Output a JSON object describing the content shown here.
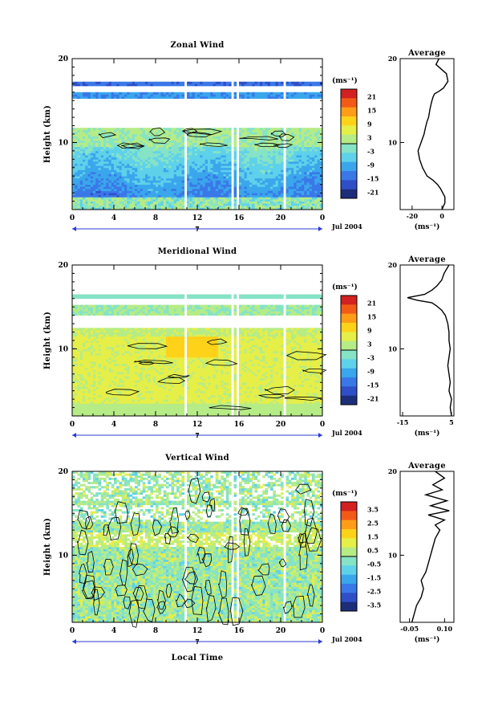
{
  "figure_label": "Jul 2004",
  "x_axis_label": "Local Time",
  "date_marker": "7",
  "average_title": "Average",
  "unit_label": "(ms⁻¹)",
  "chart_data": [
    {
      "type": "heatmap",
      "title": "Zonal Wind",
      "ylabel": "Height (km)",
      "xlabel": "",
      "x_ticks": [
        "0",
        "4",
        "8",
        "12",
        "16",
        "20",
        "0"
      ],
      "y_ticks": [
        "10",
        "20"
      ],
      "xlim": [
        0,
        24
      ],
      "ylim": [
        2,
        20
      ],
      "colorbar": {
        "label": "(ms⁻¹)",
        "ticks": [
          "21",
          "15",
          "9",
          "3",
          "-3",
          "-9",
          "-15",
          "-21"
        ],
        "range": [
          -24,
          24
        ]
      },
      "data_gaps_hours": [
        10.8,
        15.3,
        15.8,
        20.2
      ],
      "colormap": [
        "#1c2e7a",
        "#2f4fc8",
        "#3a78e8",
        "#3aa6ec",
        "#5fd1ea",
        "#86e3c6",
        "#b6ec86",
        "#e6ee48",
        "#ffd21a",
        "#ff9d18",
        "#f35a18",
        "#d32020"
      ],
      "average_profile": {
        "title": "Average",
        "xlabel": "(ms⁻¹)",
        "x_ticks": [
          "-20",
          "0"
        ],
        "y_ticks": [
          "10",
          "20"
        ],
        "xlim": [
          -28,
          8
        ],
        "ylim": [
          2,
          20
        ],
        "x": [
          0,
          2,
          2,
          -1,
          -3,
          -6,
          -10,
          -13,
          -15,
          -16,
          -14,
          -12,
          -11,
          -10,
          -9,
          -8,
          -7,
          -6,
          -5,
          -2,
          1,
          4,
          3,
          -4,
          -2
        ],
        "y": [
          2,
          2.8,
          3.5,
          4.5,
          5,
          5.5,
          6,
          7,
          8,
          9,
          10,
          11,
          11.8,
          12.5,
          13,
          14,
          14.8,
          15.4,
          15.8,
          16.1,
          16.5,
          17.3,
          18.2,
          19.3,
          20
        ]
      }
    },
    {
      "type": "heatmap",
      "title": "Meridional Wind",
      "ylabel": "Height (km)",
      "xlabel": "",
      "x_ticks": [
        "0",
        "4",
        "8",
        "12",
        "16",
        "20",
        "0"
      ],
      "y_ticks": [
        "10",
        "20"
      ],
      "xlim": [
        0,
        24
      ],
      "ylim": [
        2,
        20
      ],
      "colorbar": {
        "label": "(ms⁻¹)",
        "ticks": [
          "21",
          "15",
          "9",
          "3",
          "-3",
          "-9",
          "-15",
          "-21"
        ],
        "range": [
          -24,
          24
        ]
      },
      "data_gaps_hours": [
        10.8,
        15.3,
        15.8,
        20.2
      ],
      "colormap": [
        "#1c2e7a",
        "#2f4fc8",
        "#3a78e8",
        "#3aa6ec",
        "#5fd1ea",
        "#86e3c6",
        "#b6ec86",
        "#e6ee48",
        "#ffd21a",
        "#ff9d18",
        "#f35a18",
        "#d32020"
      ],
      "average_profile": {
        "title": "Average",
        "xlabel": "(ms⁻¹)",
        "x_ticks": [
          "-15",
          "5"
        ],
        "y_ticks": [
          "10",
          "20"
        ],
        "xlim": [
          -16,
          6
        ],
        "ylim": [
          2,
          20
        ],
        "x": [
          5,
          4.5,
          5,
          4,
          4.5,
          4,
          3.5,
          4,
          4.5,
          4,
          4,
          3.5,
          3,
          2.5,
          1,
          -1,
          -3,
          -9,
          -13,
          -6,
          -3,
          -1,
          1,
          2,
          4
        ],
        "y": [
          2,
          3,
          4,
          5,
          6,
          7,
          8,
          9,
          10,
          11,
          12,
          13,
          13.5,
          14,
          14.6,
          15.1,
          15.5,
          15.8,
          16.1,
          16.5,
          17,
          17.5,
          18.2,
          19,
          20
        ]
      }
    },
    {
      "type": "heatmap",
      "title": "Vertical Wind",
      "ylabel": "Height (km)",
      "xlabel": "Local Time",
      "x_ticks": [
        "0",
        "4",
        "8",
        "12",
        "16",
        "20",
        "0"
      ],
      "y_ticks": [
        "10",
        "20"
      ],
      "xlim": [
        0,
        24
      ],
      "ylim": [
        2,
        20
      ],
      "colorbar": {
        "label": "(ms⁻¹)",
        "ticks": [
          "3.5",
          "2.5",
          "1.5",
          "0.5",
          "-0.5",
          "-1.5",
          "-2.5",
          "-3.5"
        ],
        "range": [
          -4,
          4
        ]
      },
      "data_gaps_hours": [
        10.8,
        15.3,
        15.8,
        20.2
      ],
      "colormap": [
        "#1c2e7a",
        "#2f4fc8",
        "#3a78e8",
        "#3aa6ec",
        "#5fd1ea",
        "#86e3c6",
        "#b6ec86",
        "#e6ee48",
        "#ffd21a",
        "#ff9d18",
        "#f35a18",
        "#d32020"
      ],
      "average_profile": {
        "title": "Average",
        "xlabel": "(ms⁻¹)",
        "x_ticks": [
          "-0.05",
          "0.10"
        ],
        "y_ticks": [
          "10",
          "20"
        ],
        "xlim": [
          -0.09,
          0.14
        ],
        "ylim": [
          2,
          20
        ],
        "x": [
          -0.04,
          -0.03,
          -0.02,
          0.0,
          0.01,
          0.0,
          0.02,
          0.03,
          0.04,
          0.05,
          0.06,
          0.07,
          0.08,
          0.06,
          0.1,
          0.03,
          0.12,
          0.04,
          0.11,
          0.02,
          0.09,
          0.05,
          0.1,
          0.06
        ],
        "y": [
          2,
          3,
          4,
          5,
          6,
          7,
          8,
          9,
          10,
          11,
          12,
          12.5,
          13,
          13.6,
          14.2,
          14.8,
          15.3,
          15.9,
          16.5,
          17.2,
          17.8,
          18.4,
          19.2,
          20
        ]
      }
    }
  ]
}
